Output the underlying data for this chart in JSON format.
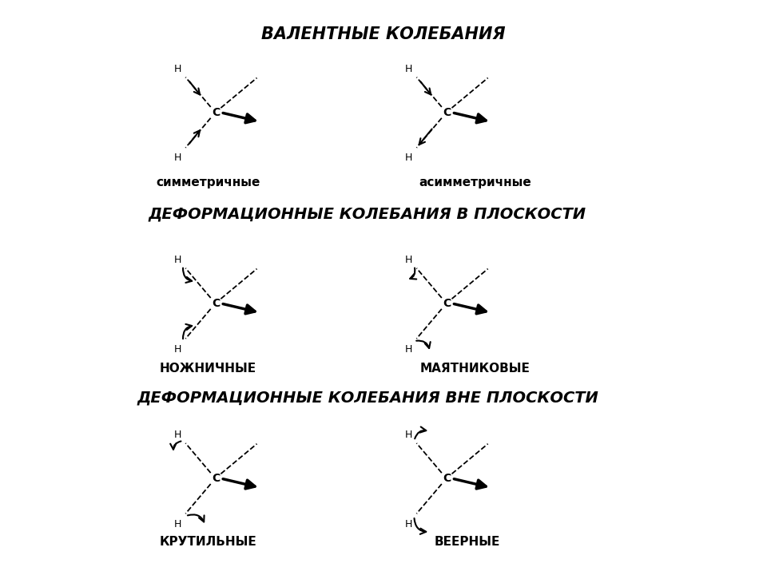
{
  "title1": "ВАЛЕНТНЫЕ КОЛЕБАНИЯ",
  "title2": "ДЕФОРМАЦИОННЫЕ КОЛЕБАНИЯ В ПЛОСКОСТИ",
  "title3": "ДЕФОРМАЦИОННЫЕ КОЛЕБАНИЯ ВНЕ ПЛОСКОСТИ",
  "label_sym": "симметричные",
  "label_asym": "асимметричные",
  "label_scissors": "НОЖНИЧНЫЕ",
  "label_pendulum": "МАЯТНИКОВЫЕ",
  "label_torsion": "КРУТИЛЬНЫЕ",
  "label_fan": "ВЕЕРНЫЕ",
  "bg_color": "#ffffff",
  "text_color": "#000000",
  "figsize": [
    9.6,
    7.2
  ],
  "dpi": 100
}
